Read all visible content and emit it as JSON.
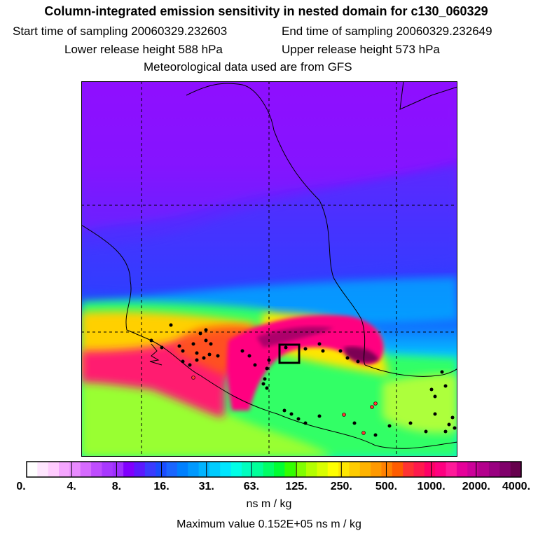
{
  "header": {
    "title": "Column-integrated emission sensitivity in nested domain for c130_060329",
    "start_time": "Start time of sampling 20060329.232603",
    "end_time": "End time of sampling 20060329.232649",
    "lower_height": "Lower release height  588 hPa",
    "upper_height": "Upper release height  573 hPa",
    "met_data": "Meteorological data used are from GFS"
  },
  "colorbar": {
    "colors": [
      "#ffffff",
      "#ffe6ff",
      "#ffccff",
      "#f5a6ff",
      "#e88aff",
      "#d66bff",
      "#bf4dff",
      "#a838ff",
      "#9e2eff",
      "#8000ff",
      "#5c19ff",
      "#3b3bff",
      "#1a4dff",
      "#1a66ff",
      "#0080ff",
      "#0099ff",
      "#00b3ff",
      "#00ccff",
      "#00e6ff",
      "#00ffe6",
      "#00ffbf",
      "#00ff99",
      "#00ff66",
      "#00ff33",
      "#33ff00",
      "#80ff00",
      "#b3ff00",
      "#d9ff00",
      "#ffff00",
      "#ffe600",
      "#ffcc00",
      "#ffb300",
      "#ff9900",
      "#ff8000",
      "#ff5c00",
      "#ff3333",
      "#ff1a4d",
      "#ff0066",
      "#ff0080",
      "#ff1a99",
      "#e60099",
      "#cc0099",
      "#b3008c",
      "#990080",
      "#80006b",
      "#66004d"
    ],
    "tick_labels": [
      "0.",
      "4.",
      "8.",
      "16.",
      "31.",
      "63.",
      "125.",
      "250.",
      "500.",
      "1000.",
      "2000.",
      "4000."
    ],
    "unit": "ns m / kg"
  },
  "max_value": "Maximum value  0.152E+05 ns m / kg"
}
